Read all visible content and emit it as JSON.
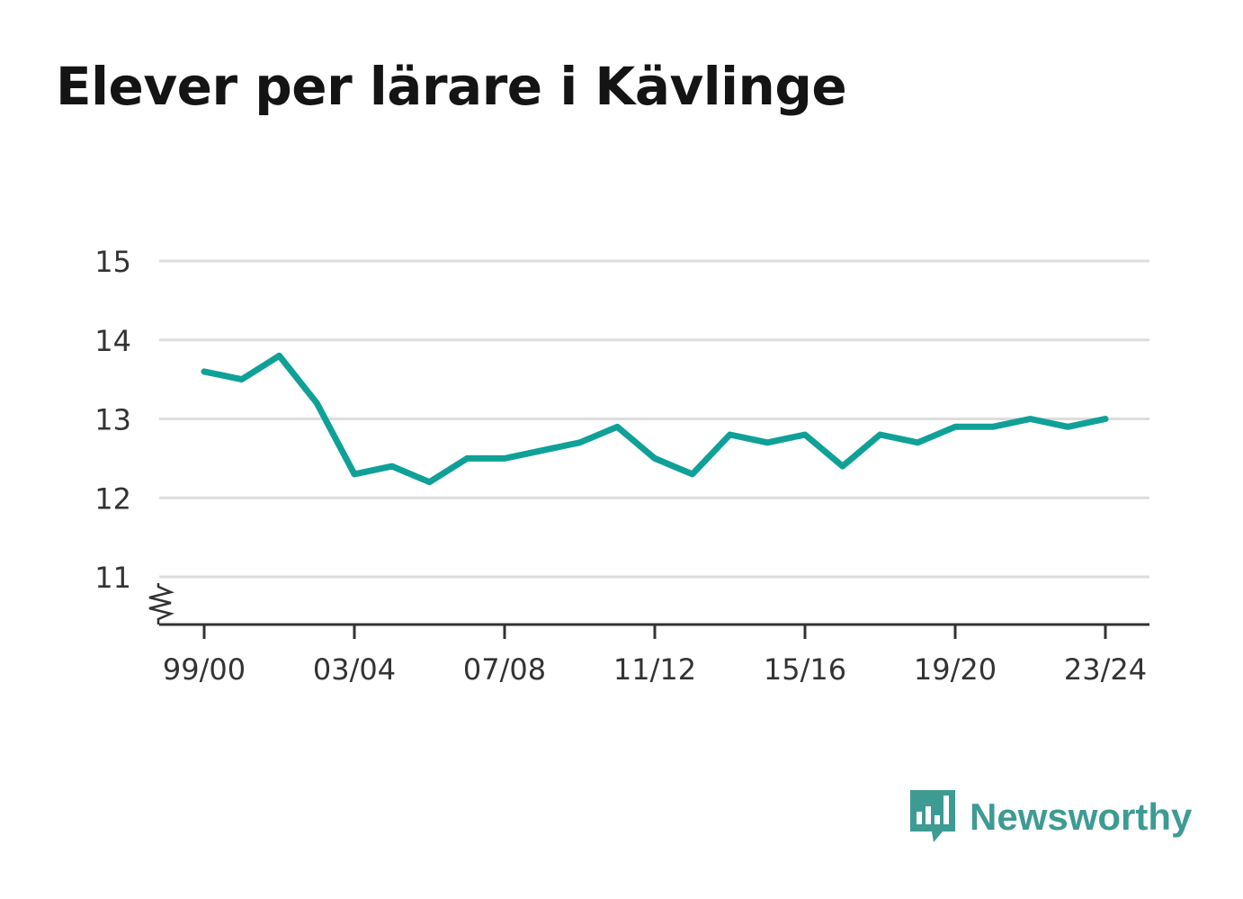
{
  "chart_data": {
    "type": "line",
    "title": "Elever per lärare i Kävlinge",
    "xlabel": "",
    "ylabel": "",
    "ylim": [
      10.4,
      15
    ],
    "y_ticks": [
      "15",
      "14",
      "13",
      "12",
      "11"
    ],
    "x_tick_labels": [
      "99/00",
      "03/04",
      "07/08",
      "11/12",
      "15/16",
      "19/20",
      "23/24"
    ],
    "grid": true,
    "axis_break": true,
    "series": [
      {
        "x": [
          "99/00",
          "00/01",
          "01/02",
          "02/03",
          "03/04",
          "04/05",
          "05/06",
          "06/07",
          "07/08",
          "08/09",
          "09/10",
          "10/11",
          "11/12",
          "12/13",
          "13/14",
          "14/15",
          "15/16",
          "16/17",
          "17/18",
          "18/19",
          "19/20",
          "20/21",
          "21/22",
          "22/23",
          "23/24"
        ],
        "values": [
          13.6,
          13.5,
          13.8,
          13.2,
          12.3,
          12.4,
          12.2,
          12.5,
          12.5,
          12.6,
          12.7,
          12.9,
          12.5,
          12.3,
          12.8,
          12.7,
          12.8,
          12.4,
          12.8,
          12.7,
          12.9,
          12.9,
          13.0,
          12.9,
          13.0
        ],
        "color": "#0fa198"
      }
    ]
  },
  "brand": {
    "name": "Newsworthy",
    "icon": "newsworthy-logo-icon",
    "color": "#3e9b94"
  }
}
